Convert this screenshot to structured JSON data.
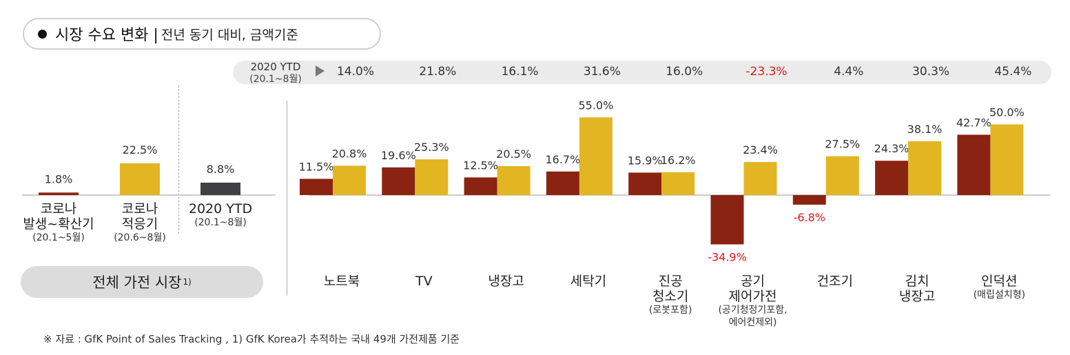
{
  "header": {
    "title_main": "시장 수요 변화 |",
    "title_sub": "전년 동기 대비, 금액기준"
  },
  "ytd_row": {
    "label_line1": "2020 YTD",
    "label_line2": "(20.1~8월)",
    "values": [
      "14.0%",
      "21.8%",
      "16.1%",
      "31.6%",
      "16.0%",
      "-23.3%",
      "4.4%",
      "30.3%",
      "45.4%"
    ]
  },
  "overall": {
    "pill_label": "전체 가전 시장",
    "pill_sup": "1)"
  },
  "footnote": "※ 자료 : GfK Point of Sales Tracking , 1) GfK Korea가 추적하는 국내 49개 가전제품 기준",
  "colors": {
    "dark_red": "#8b2312",
    "gold": "#e2b623",
    "dark_gray": "#3f4043",
    "neg_red": "#e0161b"
  },
  "chart_data": [
    {
      "type": "bar",
      "categories": [
        "코로나 발생~확산기 (20.1~5월)",
        "코로나 적응기 (20.6~8월)",
        "2020 YTD (20.1~8월)"
      ],
      "category_lines": [
        [
          "코로나",
          "발생~확산기",
          "(20.1~5월)"
        ],
        [
          "코로나",
          "적응기",
          "(20.6~8월)"
        ],
        [
          "2020 YTD",
          "(20.1~8월)"
        ]
      ],
      "values": [
        1.8,
        22.5,
        8.8
      ],
      "value_labels": [
        "1.8%",
        "22.5%",
        "8.8%"
      ],
      "bar_colors": [
        "#8b2312",
        "#e2b623",
        "#3f4043"
      ],
      "ylim": [
        -25,
        25
      ]
    },
    {
      "type": "bar",
      "categories": [
        "노트북",
        "TV",
        "냉장고",
        "세탁기",
        "진공 청소기 (로봇포함)",
        "공기 제어가전 (공기청정기포함, 에어컨제외)",
        "건조기",
        "김치 냉장고",
        "인덕션 (매립설치형)"
      ],
      "category_lines": [
        [
          "노트북"
        ],
        [
          "TV"
        ],
        [
          "냉장고"
        ],
        [
          "세탁기"
        ],
        [
          "진공",
          "청소기",
          "(로봇포함)"
        ],
        [
          "공기",
          "제어가전",
          "(공기청정기포함,",
          "에어컨제외)"
        ],
        [
          "건조기"
        ],
        [
          "김치",
          "냉장고"
        ],
        [
          "인덕션",
          "(매립설치형)"
        ]
      ],
      "series": [
        {
          "color": "#8b2312",
          "values": [
            11.5,
            19.6,
            12.5,
            16.7,
            15.9,
            -34.9,
            -6.8,
            24.3,
            42.7
          ],
          "value_labels": [
            "11.5%",
            "19.6%",
            "12.5%",
            "16.7%",
            "15.9%",
            "-34.9%",
            "-6.8%",
            "24.3%",
            "42.7%"
          ]
        },
        {
          "color": "#e2b623",
          "values": [
            20.8,
            25.3,
            20.5,
            55.0,
            16.2,
            23.4,
            27.5,
            38.1,
            50.0
          ],
          "value_labels": [
            "20.8%",
            "25.3%",
            "20.5%",
            "55.0%",
            "16.2%",
            "23.4%",
            "27.5%",
            "38.1%",
            "50.0%"
          ]
        }
      ],
      "ylim": [
        -35,
        55
      ]
    }
  ]
}
